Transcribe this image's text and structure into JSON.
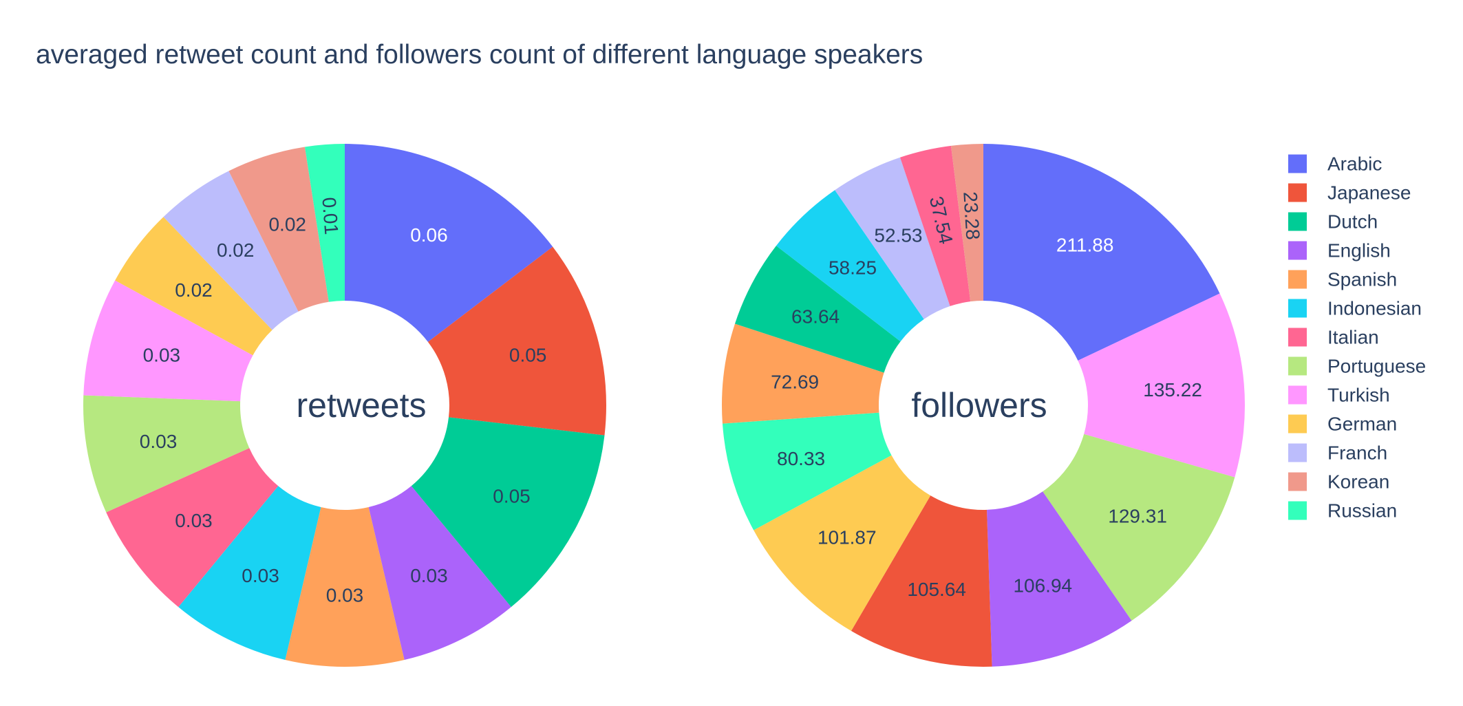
{
  "chart_data": {
    "title": "averaged retweet count and followers count of different language speakers",
    "legend_position": "right",
    "legend": [
      {
        "name": "Arabic",
        "color": "#636efa"
      },
      {
        "name": "Japanese",
        "color": "#ef553b"
      },
      {
        "name": "Dutch",
        "color": "#00cc96"
      },
      {
        "name": "English",
        "color": "#ab63fa"
      },
      {
        "name": "Spanish",
        "color": "#ffa15a"
      },
      {
        "name": "Indonesian",
        "color": "#19d3f3"
      },
      {
        "name": "Italian",
        "color": "#ff6692"
      },
      {
        "name": "Portuguese",
        "color": "#b6e880"
      },
      {
        "name": "Turkish",
        "color": "#ff97ff"
      },
      {
        "name": "German",
        "color": "#fecb52"
      },
      {
        "name": "Franch",
        "color": "#bcbdfc"
      },
      {
        "name": "Korean",
        "color": "#f0998b"
      },
      {
        "name": "Russian",
        "color": "#33ffbb"
      }
    ],
    "charts": [
      {
        "type": "pie",
        "hole": 0.4,
        "center_text": "retweets",
        "slices": [
          {
            "label": "Arabic",
            "value": 0.06,
            "text": "0.06"
          },
          {
            "label": "Japanese",
            "value": 0.05,
            "text": "0.05"
          },
          {
            "label": "Dutch",
            "value": 0.05,
            "text": "0.05"
          },
          {
            "label": "English",
            "value": 0.03,
            "text": "0.03"
          },
          {
            "label": "Spanish",
            "value": 0.03,
            "text": "0.03"
          },
          {
            "label": "Indonesian",
            "value": 0.03,
            "text": "0.03"
          },
          {
            "label": "Italian",
            "value": 0.03,
            "text": "0.03"
          },
          {
            "label": "Portuguese",
            "value": 0.03,
            "text": "0.03"
          },
          {
            "label": "Turkish",
            "value": 0.03,
            "text": "0.03"
          },
          {
            "label": "German",
            "value": 0.02,
            "text": "0.02"
          },
          {
            "label": "Franch",
            "value": 0.02,
            "text": "0.02"
          },
          {
            "label": "Korean",
            "value": 0.02,
            "text": "0.02"
          },
          {
            "label": "Russian",
            "value": 0.01,
            "text": "0.01"
          }
        ]
      },
      {
        "type": "pie",
        "hole": 0.4,
        "center_text": "followers",
        "slices": [
          {
            "label": "Arabic",
            "value": 211.88,
            "text": "211.88"
          },
          {
            "label": "Turkish",
            "value": 135.22,
            "text": "135.22"
          },
          {
            "label": "Portuguese",
            "value": 129.31,
            "text": "129.31"
          },
          {
            "label": "English",
            "value": 106.94,
            "text": "106.94"
          },
          {
            "label": "Japanese",
            "value": 105.64,
            "text": "105.64"
          },
          {
            "label": "German",
            "value": 101.87,
            "text": "101.87"
          },
          {
            "label": "Russian",
            "value": 80.33,
            "text": "80.33"
          },
          {
            "label": "Spanish",
            "value": 72.69,
            "text": "72.69"
          },
          {
            "label": "Dutch",
            "value": 63.64,
            "text": "63.64"
          },
          {
            "label": "Indonesian",
            "value": 58.25,
            "text": "58.25"
          },
          {
            "label": "Franch",
            "value": 52.53,
            "text": "52.53"
          },
          {
            "label": "Italian",
            "value": 37.54,
            "text": "37.54"
          },
          {
            "label": "Korean",
            "value": 23.28,
            "text": "23.28"
          }
        ]
      }
    ]
  }
}
